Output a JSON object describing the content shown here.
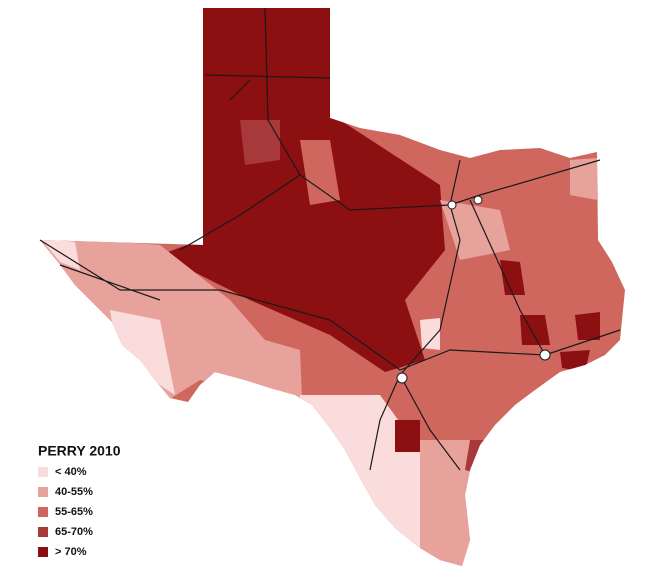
{
  "legend": {
    "title": "PERRY 2010",
    "items": [
      {
        "label": "< 40%",
        "color": "#fbdcdc"
      },
      {
        "label": "40-55%",
        "color": "#e8a29c"
      },
      {
        "label": "55-65%",
        "color": "#d0675f"
      },
      {
        "label": "65-70%",
        "color": "#a8393a"
      },
      {
        "label": "> 70%",
        "color": "#8c0f12"
      }
    ]
  }
}
